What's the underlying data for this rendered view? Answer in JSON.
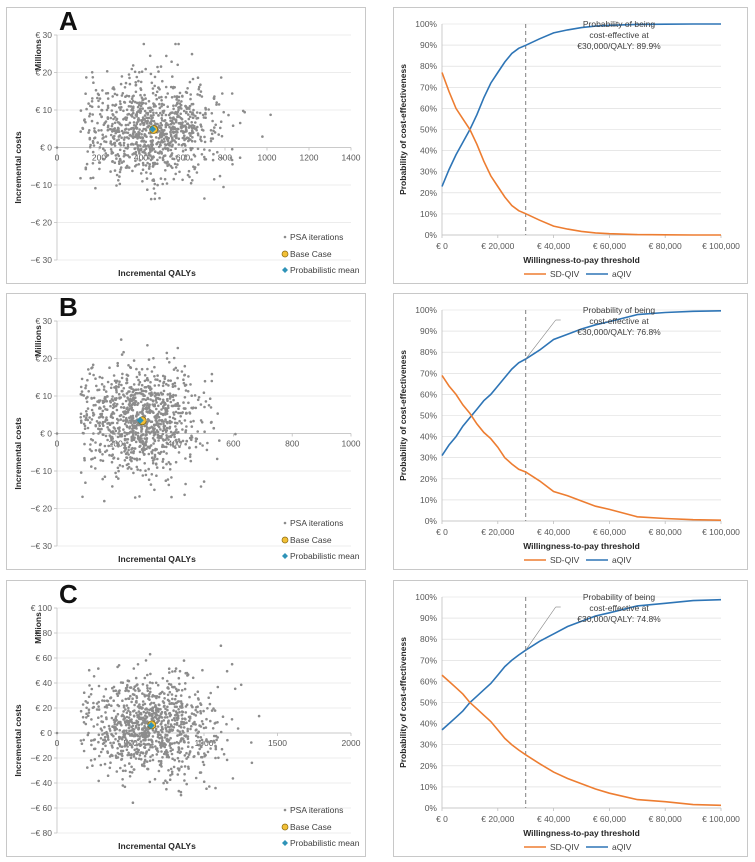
{
  "colors": {
    "psa": "#8c8c8c",
    "base_case_fill": "#f2c037",
    "base_case_stroke": "#8a6a10",
    "prob_mean": "#2f93b8",
    "sd_qiv": "#ed7d31",
    "aqiv": "#2e75b6",
    "grid": "#d9d9d9",
    "axis": "#bfbfbf",
    "threshold_line": "#7f7f7f"
  },
  "chart_data": [
    {
      "id": "A-scatter",
      "panel_label": "A",
      "type": "scatter",
      "title": "",
      "xlabel": "Incremental QALYs",
      "ylabel": "Incremental costs",
      "yunit_label": "Millions",
      "xlim": [
        0,
        1400
      ],
      "ylim": [
        -30,
        30
      ],
      "xticks": [
        "0",
        "200",
        "400",
        "600",
        "800",
        "1000",
        "1200",
        "1400"
      ],
      "yticks": [
        "€ 30",
        "€ 20",
        "€ 10",
        "€ 0",
        "−€ 10",
        "−€ 20",
        "−€ 30"
      ],
      "grid": "horizontal",
      "legend": [
        "PSA iterations",
        "Base Case",
        "Probabilistic mean"
      ],
      "legend_position": "bottom-right",
      "psa_cloud": {
        "n": 1000,
        "x_mean": 455,
        "x_sd": 160,
        "y_mean": 4.8,
        "y_sd": 6.5,
        "seed": 11
      },
      "base_case": [
        460,
        4.8
      ],
      "probabilistic_mean": [
        455,
        4.9
      ]
    },
    {
      "id": "A-ceac",
      "panel_label": "A",
      "type": "line",
      "xlabel": "Willingness-to-pay threshold",
      "ylabel": "Probability of cost-effectiveness",
      "xlim": [
        0,
        100000
      ],
      "ylim": [
        0,
        100
      ],
      "xticks": [
        "€ 0",
        "€ 20,000",
        "€ 40,000",
        "€ 60,000",
        "€ 80,000",
        "€ 100,000"
      ],
      "yticks": [
        "100%",
        "90%",
        "80%",
        "70%",
        "60%",
        "50%",
        "40%",
        "30%",
        "20%",
        "10%",
        "0%"
      ],
      "grid": "horizontal",
      "threshold": 30000,
      "annotation": [
        "Probability of being",
        "cost-effective at",
        "€30,000/QALY: 89.9%"
      ],
      "legend": [
        "SD-QIV",
        "aQIV"
      ],
      "legend_position": "bottom",
      "x": [
        0,
        2500,
        5000,
        7500,
        10000,
        12500,
        15000,
        17500,
        20000,
        22500,
        25000,
        27500,
        30000,
        35000,
        40000,
        45000,
        50000,
        55000,
        60000,
        70000,
        80000,
        90000,
        100000
      ],
      "series": [
        {
          "name": "aQIV",
          "values": [
            23,
            31,
            38,
            44,
            50,
            57,
            65,
            72,
            77,
            82,
            86,
            88.5,
            89.9,
            93,
            95.8,
            97.2,
            98.3,
            99,
            99.4,
            99.8,
            99.9,
            100,
            100
          ]
        },
        {
          "name": "SD-QIV",
          "values": [
            77,
            68,
            60,
            55,
            50,
            43,
            35,
            28,
            23,
            18,
            14,
            11.5,
            10.1,
            7,
            4.2,
            2.8,
            1.7,
            1,
            0.6,
            0.2,
            0.1,
            0,
            0
          ]
        }
      ]
    },
    {
      "id": "B-scatter",
      "panel_label": "B",
      "type": "scatter",
      "xlabel": "Incremental QALYs",
      "ylabel": "Incremental costs",
      "yunit_label": "Millions",
      "xlim": [
        0,
        1000
      ],
      "ylim": [
        -30,
        30
      ],
      "xticks": [
        "0",
        "200",
        "400",
        "600",
        "800",
        "1000"
      ],
      "yticks": [
        "€ 30",
        "€ 20",
        "€ 10",
        "€ 0",
        "−€ 10",
        "−€ 20",
        "−€ 30"
      ],
      "grid": "horizontal",
      "legend": [
        "PSA iterations",
        "Base Case",
        "Probabilistic mean"
      ],
      "legend_position": "bottom-right",
      "psa_cloud": {
        "n": 1000,
        "x_mean": 285,
        "x_sd": 100,
        "y_mean": 3.5,
        "y_sd": 7,
        "seed": 23
      },
      "base_case": [
        290,
        3.4
      ],
      "probabilistic_mean": [
        283,
        3.5
      ]
    },
    {
      "id": "B-ceac",
      "panel_label": "B",
      "type": "line",
      "xlabel": "Willingness-to-pay threshold",
      "ylabel": "Probability of cost-effectiveness",
      "xlim": [
        0,
        100000
      ],
      "ylim": [
        0,
        100
      ],
      "xticks": [
        "€ 0",
        "€ 20,000",
        "€ 40,000",
        "€ 60,000",
        "€ 80,000",
        "€ 100,000"
      ],
      "yticks": [
        "100%",
        "90%",
        "80%",
        "70%",
        "60%",
        "50%",
        "40%",
        "30%",
        "20%",
        "10%",
        "0%"
      ],
      "grid": "horizontal",
      "threshold": 30000,
      "annotation": [
        "Probability of being",
        "cost-effective at",
        "€30,000/QALY: 76.8%"
      ],
      "legend": [
        "SD-QIV",
        "aQIV"
      ],
      "legend_position": "bottom",
      "x": [
        0,
        2500,
        5000,
        7500,
        10000,
        12500,
        15000,
        17500,
        20000,
        22500,
        25000,
        27500,
        30000,
        35000,
        40000,
        45000,
        50000,
        55000,
        60000,
        70000,
        80000,
        90000,
        100000
      ],
      "series": [
        {
          "name": "aQIV",
          "values": [
            31,
            36,
            40,
            45,
            49,
            53,
            57,
            60,
            64,
            68,
            72,
            75,
            76.8,
            81,
            86,
            88.5,
            91,
            93,
            94.5,
            97.8,
            98.8,
            99.4,
            99.6
          ]
        },
        {
          "name": "SD-QIV",
          "values": [
            69,
            64,
            60,
            55,
            51,
            46,
            42,
            39,
            35,
            30,
            27,
            24.5,
            23.2,
            19,
            14,
            12,
            9.5,
            7,
            5.5,
            2,
            1.2,
            0.6,
            0.4
          ]
        }
      ]
    },
    {
      "id": "C-scatter",
      "panel_label": "C",
      "type": "scatter",
      "xlabel": "Incremental QALYs",
      "ylabel": "Incremental costs",
      "yunit_label": "Millions",
      "xlim": [
        0,
        2000
      ],
      "ylim": [
        -80,
        100
      ],
      "xticks": [
        "0",
        "500",
        "1000",
        "1500",
        "2000"
      ],
      "yticks": [
        "€ 100",
        "€ 80",
        "€ 60",
        "€ 40",
        "€ 20",
        "€ 0",
        "−€ 20",
        "−€ 40",
        "−€ 60",
        "−€ 80"
      ],
      "grid": "horizontal",
      "legend": [
        "PSA iterations",
        "Base Case",
        "Probabilistic mean"
      ],
      "legend_position": "bottom-right",
      "psa_cloud": {
        "n": 1000,
        "x_mean": 640,
        "x_sd": 230,
        "y_mean": 6,
        "y_sd": 19,
        "seed": 37
      },
      "base_case": [
        645,
        6.5
      ],
      "probabilistic_mean": [
        640,
        6
      ]
    },
    {
      "id": "C-ceac",
      "panel_label": "C",
      "type": "line",
      "xlabel": "Willingness-to-pay threshold",
      "ylabel": "Probability of cost-effectiveness",
      "xlim": [
        0,
        100000
      ],
      "ylim": [
        0,
        100
      ],
      "xticks": [
        "€ 0",
        "€ 20,000",
        "€ 40,000",
        "€ 60,000",
        "€ 80,000",
        "€ 100,000"
      ],
      "yticks": [
        "100%",
        "90%",
        "80%",
        "70%",
        "60%",
        "50%",
        "40%",
        "30%",
        "20%",
        "10%",
        "0%"
      ],
      "grid": "horizontal",
      "threshold": 30000,
      "annotation": [
        "Probability of being",
        "cost-effective at",
        "€30,000/QALY: 74.8%"
      ],
      "legend": [
        "SD-QIV",
        "aQIV"
      ],
      "legend_position": "bottom",
      "x": [
        0,
        2500,
        5000,
        7500,
        10000,
        12500,
        15000,
        17500,
        20000,
        22500,
        25000,
        27500,
        30000,
        35000,
        40000,
        45000,
        50000,
        55000,
        60000,
        70000,
        80000,
        90000,
        100000
      ],
      "series": [
        {
          "name": "aQIV",
          "values": [
            37,
            40,
            43,
            46,
            50,
            53,
            56,
            59,
            63,
            67,
            70,
            72.5,
            74.8,
            79,
            82.5,
            86,
            88.5,
            91,
            92.5,
            95.8,
            97,
            98.3,
            98.7
          ]
        },
        {
          "name": "SD-QIV",
          "values": [
            63,
            60,
            57,
            54,
            50,
            47,
            44,
            41,
            37,
            33,
            30,
            27.5,
            25.2,
            21,
            17,
            14,
            11.5,
            9,
            7,
            4,
            3,
            1.6,
            1.3
          ]
        }
      ]
    }
  ]
}
